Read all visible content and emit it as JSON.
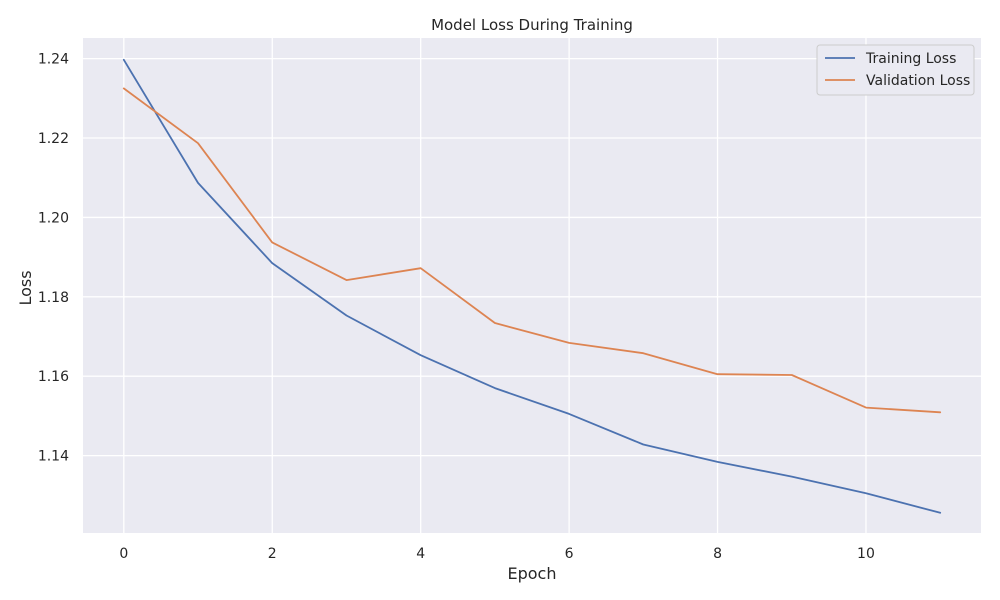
{
  "chart_data": {
    "type": "line",
    "title": "Model Loss During Training",
    "xlabel": "Epoch",
    "ylabel": "Loss",
    "x": [
      0,
      1,
      2,
      3,
      4,
      5,
      6,
      7,
      8,
      9,
      10,
      11
    ],
    "xlim": [
      -0.55,
      11.55
    ],
    "ylim": [
      1.1205,
      1.2452
    ],
    "x_ticks": [
      0,
      2,
      4,
      6,
      8,
      10
    ],
    "y_ticks": [
      1.14,
      1.16,
      1.18,
      1.2,
      1.22,
      1.24
    ],
    "x_tick_labels": [
      "0",
      "2",
      "4",
      "6",
      "8",
      "10"
    ],
    "y_tick_labels": [
      "1.14",
      "1.16",
      "1.18",
      "1.20",
      "1.22",
      "1.24"
    ],
    "grid": true,
    "legend_position": "top-right",
    "series": [
      {
        "name": "Training Loss",
        "color": "#4c72b0",
        "values": [
          1.2397,
          1.2087,
          1.1885,
          1.1753,
          1.1653,
          1.157,
          1.1505,
          1.1428,
          1.1384,
          1.1347,
          1.1305,
          1.1256
        ]
      },
      {
        "name": "Validation Loss",
        "color": "#dd8452",
        "values": [
          1.2325,
          1.2187,
          1.1937,
          1.1842,
          1.1872,
          1.1734,
          1.1684,
          1.1658,
          1.1605,
          1.1603,
          1.1521,
          1.1509
        ]
      }
    ],
    "colors": {
      "plot_background": "#eaeaf2",
      "grid": "#ffffff",
      "text": "#262626"
    }
  }
}
